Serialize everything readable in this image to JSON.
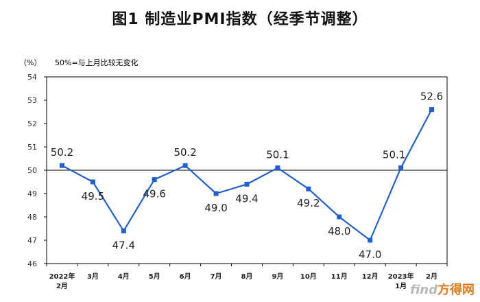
{
  "page_title": "图1  制造业PMI指数（经季节调整）",
  "unit_label": "（%）",
  "reference_note": "50%=与上月比较无变化",
  "watermark": {
    "brand": "find",
    "suffix": "方得网"
  },
  "colors": {
    "line": "#1f5fd1",
    "axis": "#000000"
  },
  "chart_data": {
    "type": "line",
    "title": "图1  制造业PMI指数（经季节调整）",
    "ylabel": "（%）",
    "xlabel": "",
    "categories": [
      [
        "2022年",
        "2月"
      ],
      [
        "3月"
      ],
      [
        "4月"
      ],
      [
        "5月"
      ],
      [
        "6月"
      ],
      [
        "7月"
      ],
      [
        "8月"
      ],
      [
        "9月"
      ],
      [
        "10月"
      ],
      [
        "11月"
      ],
      [
        "12月"
      ],
      [
        "2023年",
        "1月"
      ],
      [
        "2月"
      ]
    ],
    "values": [
      50.2,
      49.5,
      47.4,
      49.6,
      50.2,
      49.0,
      49.4,
      50.1,
      49.2,
      48.0,
      47.0,
      50.1,
      52.6
    ],
    "value_labels": [
      "50.2",
      "49.5",
      "47.4",
      "49.6",
      "50.2",
      "49.0",
      "49.4",
      "50.1",
      "49.2",
      "48.0",
      "47.0",
      "50.1",
      "52.6"
    ],
    "label_positions": [
      "above",
      "below",
      "below",
      "below",
      "above",
      "below",
      "below",
      "above",
      "below",
      "below",
      "below",
      "above-left",
      "above"
    ],
    "ylim": [
      46,
      54
    ],
    "yticks": [
      46,
      47,
      48,
      49,
      50,
      51,
      52,
      53,
      54
    ],
    "reference_line": 50,
    "grid": false,
    "legend": "none"
  }
}
